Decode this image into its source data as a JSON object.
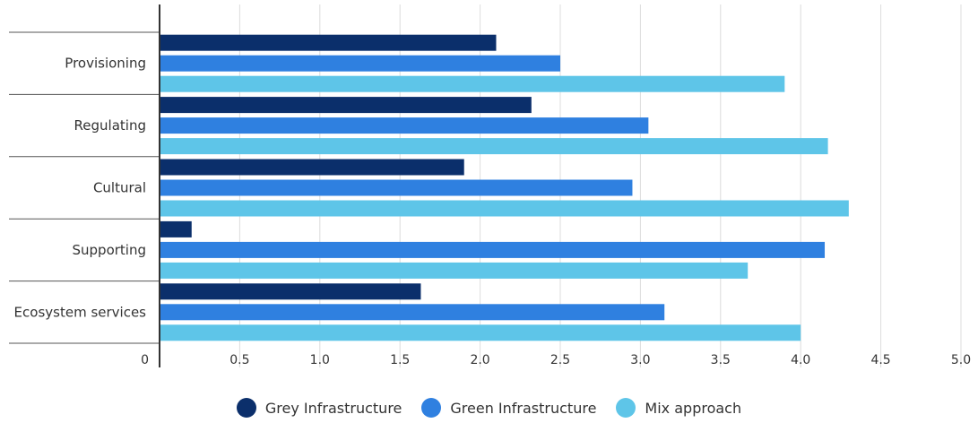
{
  "chart_data": {
    "type": "bar",
    "orientation": "horizontal",
    "categories": [
      "Provisioning",
      "Regulating",
      "Cultural",
      "Supporting",
      "Ecosystem services"
    ],
    "series": [
      {
        "name": "Grey Infrastructure",
        "color": "#0b2f6b",
        "values": [
          2.1,
          2.32,
          1.9,
          0.2,
          1.63
        ]
      },
      {
        "name": "Green Infrastructure",
        "color": "#2f80e0",
        "values": [
          2.5,
          3.05,
          2.95,
          4.15,
          3.15
        ]
      },
      {
        "name": "Mix approach",
        "color": "#5ec5e8",
        "values": [
          3.9,
          4.17,
          4.3,
          3.67,
          4.0
        ]
      }
    ],
    "xlim": [
      0,
      5
    ],
    "xticks": [
      "0",
      "0.5",
      "1.0",
      "1.5",
      "2.0",
      "2.5",
      "3.0",
      "3.5",
      "4.0",
      "4.5",
      "5.0"
    ],
    "grid": true,
    "legend_position": "bottom"
  }
}
